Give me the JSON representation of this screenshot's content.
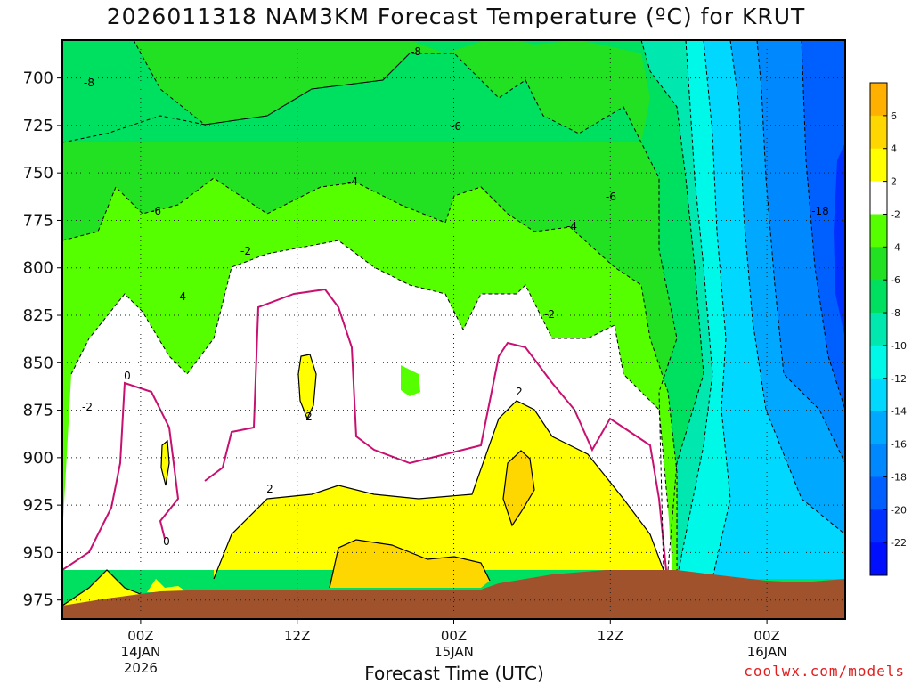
{
  "title": "2026011318 NAM3KM Forecast Temperature (ºC) for KRUT",
  "credit": "coolwx.com/models",
  "chart_data": {
    "type": "contour",
    "title": "2026011318 NAM3KM Forecast Temperature (ºC) for KRUT",
    "xlabel": "Forecast Time (UTC)",
    "ylabel": "",
    "y_axis": {
      "label_values": [
        700,
        725,
        750,
        775,
        800,
        825,
        850,
        875,
        900,
        925,
        950,
        975
      ],
      "range": [
        680,
        985
      ],
      "inverted": true
    },
    "x_axis": {
      "ticks": [
        {
          "hour": 6,
          "lines": [
            "00Z",
            "14JAN",
            "2026"
          ]
        },
        {
          "hour": 18,
          "lines": [
            "12Z"
          ]
        },
        {
          "hour": 30,
          "lines": [
            "00Z",
            "15JAN"
          ]
        },
        {
          "hour": 42,
          "lines": [
            "12Z"
          ]
        },
        {
          "hour": 54,
          "lines": [
            "00Z",
            "16JAN"
          ]
        }
      ],
      "range_hours": [
        0,
        60
      ]
    },
    "grid": "dotted",
    "colorbar": {
      "labels": [
        "6",
        "4",
        "2",
        "-2",
        "-4",
        "-6",
        "-8",
        "-10",
        "-12",
        "-14",
        "-16",
        "-18",
        "-20",
        "-22"
      ],
      "colors": [
        "#ffb000",
        "#ffd700",
        "#ffff00",
        "#ffffff",
        "#55ff00",
        "#22e022",
        "#00e060",
        "#00e8b0",
        "#00f8e8",
        "#00d8ff",
        "#00a8ff",
        "#0088ff",
        "#0060ff",
        "#0030ff",
        "#0010ff"
      ]
    },
    "contour_labels": [
      {
        "text": "-8"
      },
      {
        "text": "-8"
      },
      {
        "text": "-6"
      },
      {
        "text": "-6"
      },
      {
        "text": "-6"
      },
      {
        "text": "-4"
      },
      {
        "text": "-4"
      },
      {
        "text": "-4"
      },
      {
        "text": "-2"
      },
      {
        "text": "-2"
      },
      {
        "text": "-2"
      },
      {
        "text": "-18"
      },
      {
        "text": "0"
      },
      {
        "text": "0"
      },
      {
        "text": "2"
      },
      {
        "text": "2"
      },
      {
        "text": "2"
      }
    ],
    "colors": {
      "ground": "#a0522d",
      "freezing_line": "#c81070",
      "contour_line": "#000000"
    }
  }
}
